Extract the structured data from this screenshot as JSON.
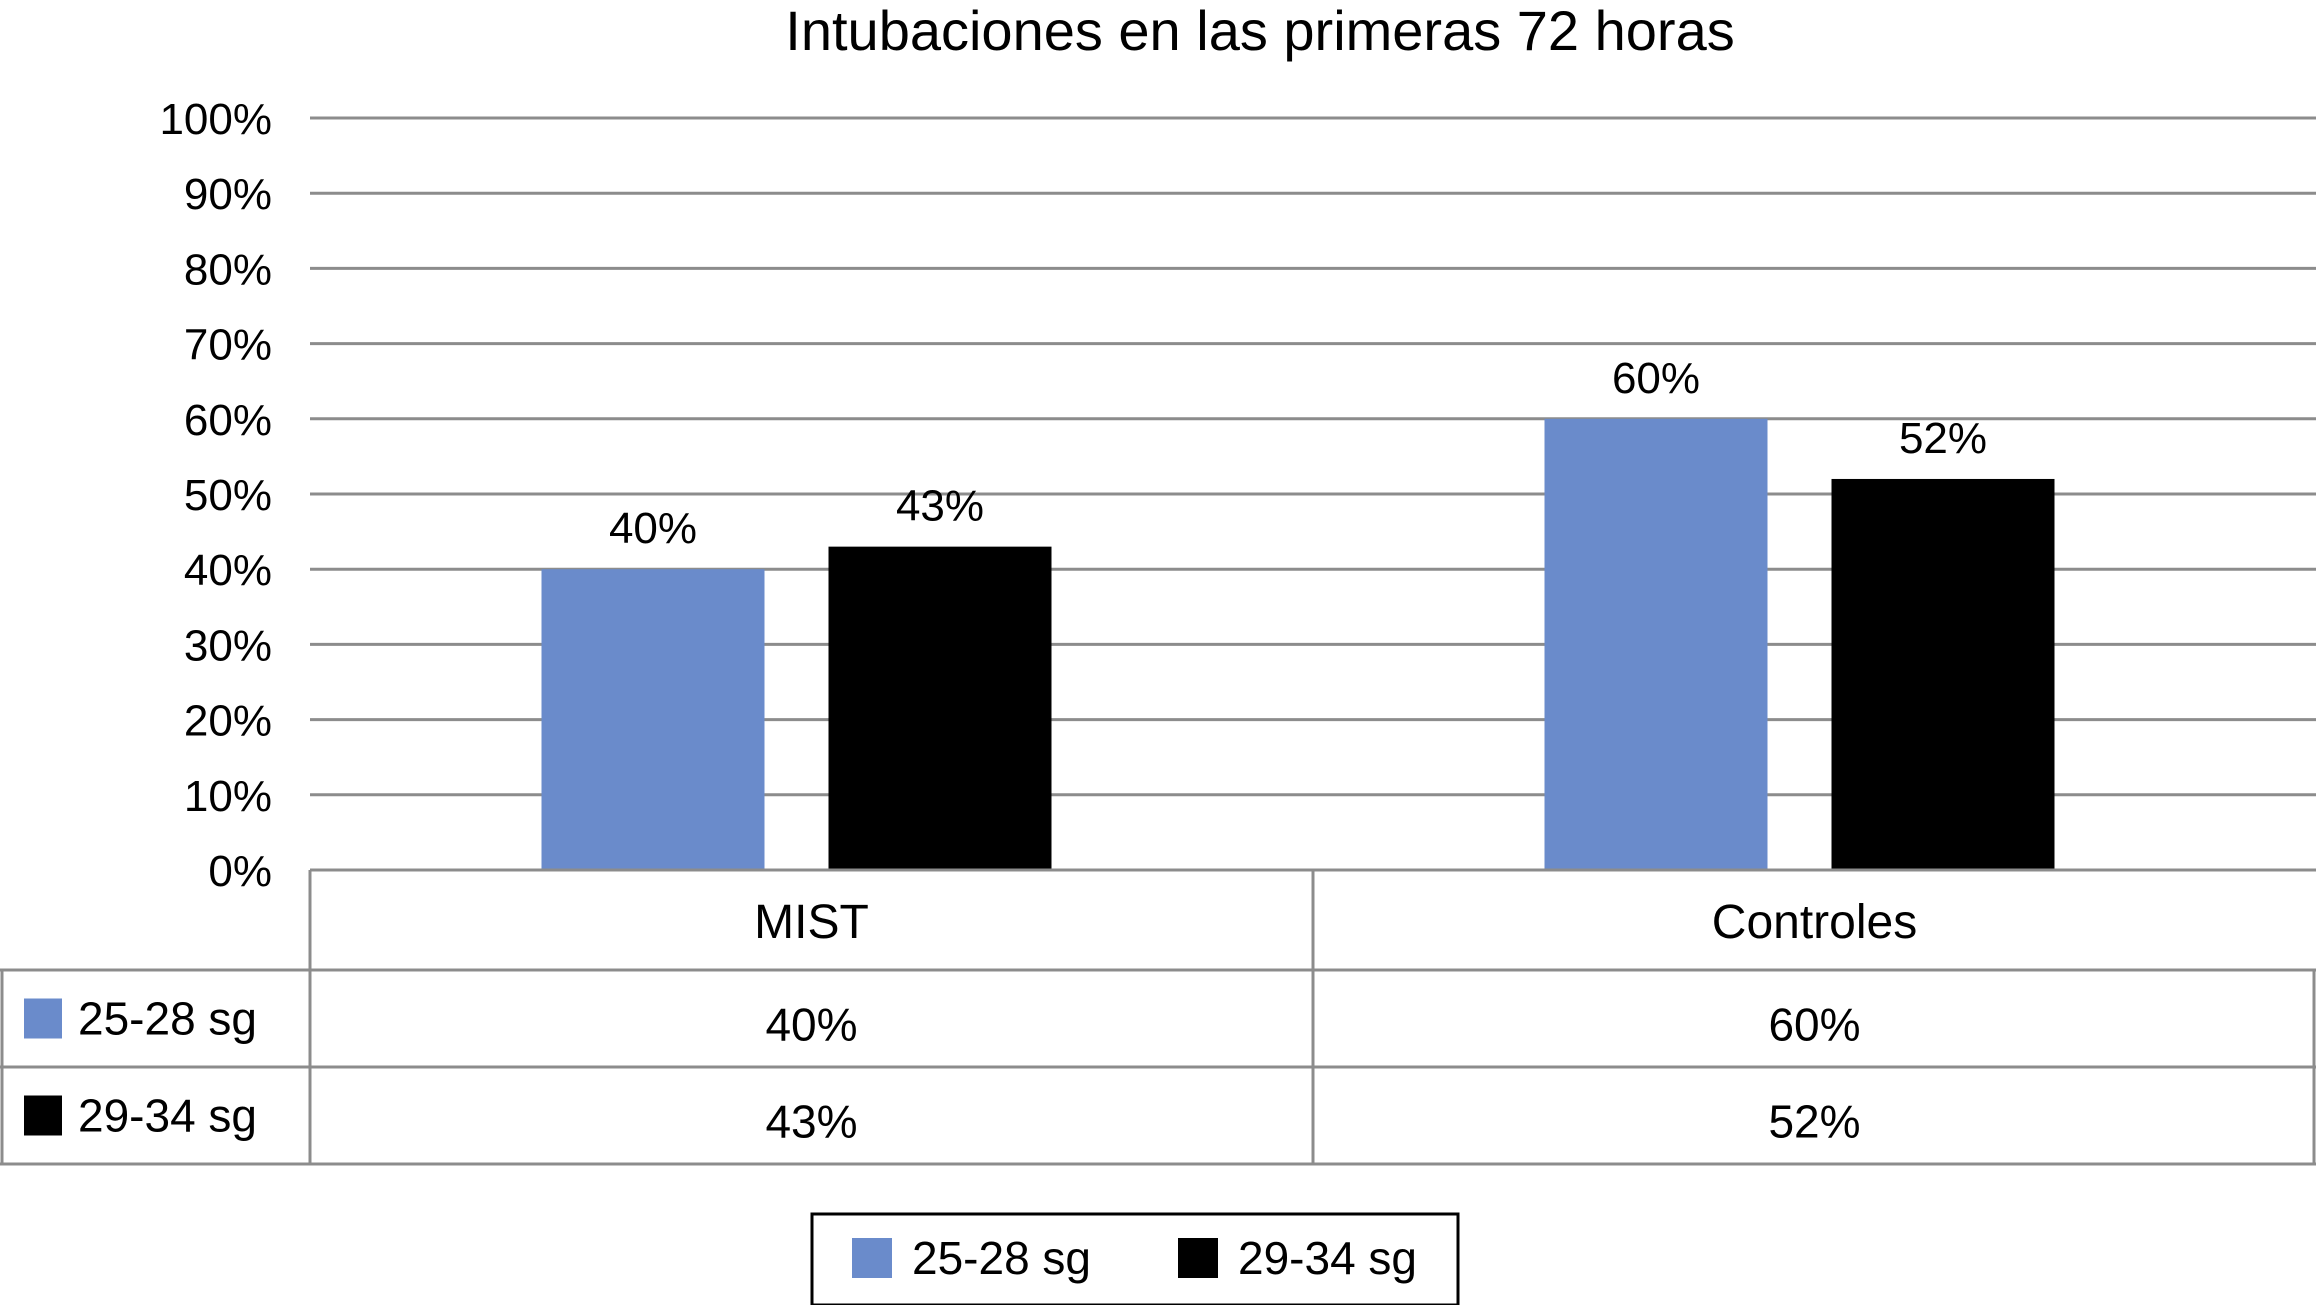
{
  "chart_data": {
    "type": "bar",
    "title": "Intubaciones en las primeras 72 horas",
    "categories": [
      "MIST",
      "Controles"
    ],
    "series": [
      {
        "name": "25-28 sg",
        "values": [
          40,
          60
        ],
        "color": "#6a8bcb"
      },
      {
        "name": "29-34 sg",
        "values": [
          43,
          52
        ],
        "color": "#000000"
      }
    ],
    "data_labels": [
      [
        "40%",
        "60%"
      ],
      [
        "43%",
        "52%"
      ]
    ],
    "yticks": [
      "0%",
      "10%",
      "20%",
      "30%",
      "40%",
      "50%",
      "60%",
      "70%",
      "80%",
      "90%",
      "100%"
    ],
    "ylim": [
      0,
      100
    ],
    "grid": true,
    "data_table": {
      "rows": [
        {
          "label": "25-28 sg",
          "cells": [
            "40%",
            "60%"
          ]
        },
        {
          "label": "29-34 sg",
          "cells": [
            "43%",
            "52%"
          ]
        }
      ]
    },
    "legend": {
      "position": "bottom",
      "entries": [
        "25-28 sg",
        "29-34 sg"
      ]
    }
  }
}
